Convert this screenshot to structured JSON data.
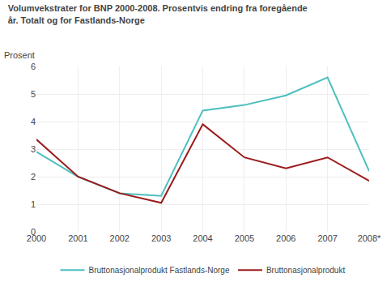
{
  "chart_data": {
    "type": "line",
    "title": "Volumvekstrater for BNP 2000-2008. Prosentvis endring fra foregående\når. Totalt og for Fastlands-Norge",
    "ylabel": "Prosent",
    "categories": [
      "2000",
      "2001",
      "2002",
      "2003",
      "2004",
      "2005",
      "2006",
      "2007",
      "2008*"
    ],
    "series": [
      {
        "name": "Bruttonasjonalprodukt Fastlands-Norge",
        "color": "#4DBFBF",
        "values": [
          2.9,
          2.0,
          1.4,
          1.3,
          4.4,
          4.6,
          4.95,
          5.6,
          2.2
        ]
      },
      {
        "name": "Bruttonasjonalprodukt",
        "color": "#9B1B1B",
        "values": [
          3.35,
          2.0,
          1.4,
          1.05,
          3.9,
          2.7,
          2.3,
          2.7,
          1.85
        ]
      }
    ],
    "ylim": [
      0,
      6
    ],
    "yticks": [
      0,
      1,
      2,
      3,
      4,
      5,
      6
    ],
    "grid": true,
    "legend": "bottom"
  }
}
